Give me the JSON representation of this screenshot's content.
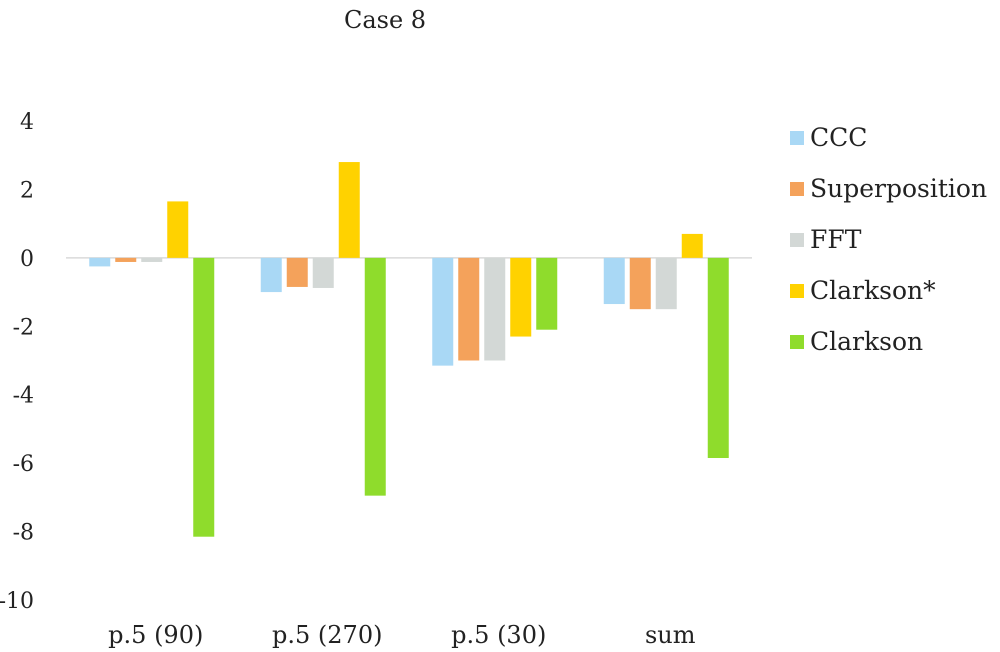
{
  "chart_data": {
    "type": "bar",
    "title": "Case 8",
    "xlabel": "",
    "ylabel": "",
    "categories": [
      "p.5 (90)",
      "p.5 (270)",
      "p.5 (30)",
      "sum"
    ],
    "ylim": [
      -10,
      4
    ],
    "yticks": [
      4,
      2,
      0,
      -2,
      -4,
      -6,
      -8,
      -10
    ],
    "grid": false,
    "legend_position": "right",
    "series": [
      {
        "name": "CCC",
        "color": "#a9d8f5",
        "values": [
          -0.25,
          -1.0,
          -3.15,
          -1.35
        ]
      },
      {
        "name": "Superposition",
        "color": "#f4a25b",
        "values": [
          -0.12,
          -0.85,
          -3.0,
          -1.5
        ]
      },
      {
        "name": "FFT",
        "color": "#d3d8d6",
        "values": [
          -0.12,
          -0.88,
          -3.0,
          -1.5
        ]
      },
      {
        "name": "Clarkson*",
        "color": "#ffd200",
        "values": [
          1.65,
          2.8,
          -2.3,
          0.7
        ]
      },
      {
        "name": "Clarkson",
        "color": "#8fdc2c",
        "values": [
          -8.15,
          -6.95,
          -2.1,
          -5.85
        ]
      }
    ]
  }
}
